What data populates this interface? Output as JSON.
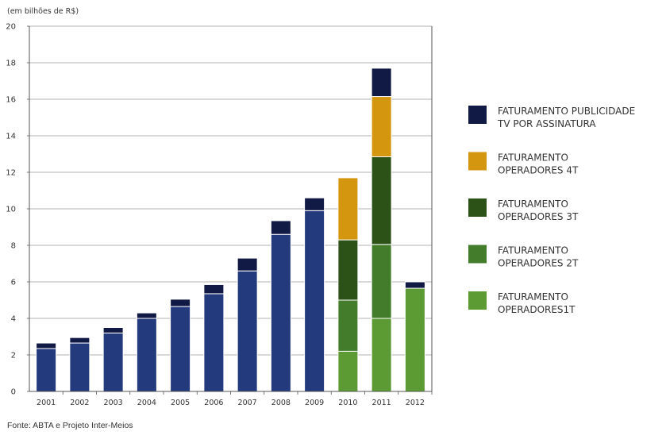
{
  "unit_label": "(em bilhões de R$)",
  "source": "Fonte: ABTA e Projeto Inter-Meios",
  "colors": {
    "publicidade": "#111a45",
    "operadores_4t": "#d4950f",
    "operadores_3t": "#2d5218",
    "operadores_2t": "#437d2b",
    "operadores_1t": "#5c9a33",
    "operadores_pre2010": "#233a7d",
    "grid": "#999999",
    "axis": "#555555"
  },
  "legend": [
    {
      "series": "publicidade",
      "lines": [
        "FATURAMENTO PUBLICIDADE",
        "TV POR ASSINATURA"
      ]
    },
    {
      "series": "operadores_4t",
      "lines": [
        "FATURAMENTO",
        "OPERADORES 4T"
      ]
    },
    {
      "series": "operadores_3t",
      "lines": [
        "FATURAMENTO",
        "OPERADORES 3T"
      ]
    },
    {
      "series": "operadores_2t",
      "lines": [
        "FATURAMENTO",
        "OPERADORES 2T"
      ]
    },
    {
      "series": "operadores_1t",
      "lines": [
        "FATURAMENTO",
        "OPERADORES1T"
      ]
    }
  ],
  "chart_data": {
    "type": "bar",
    "stacked": true,
    "title": "",
    "xlabel": "",
    "ylabel": "(em bilhões de R$)",
    "ylim": [
      0,
      20
    ],
    "yticks": [
      0,
      2,
      4,
      6,
      8,
      10,
      12,
      14,
      16,
      18,
      20
    ],
    "grid": true,
    "legend_position": "right",
    "categories": [
      "2001",
      "2002",
      "2003",
      "2004",
      "2005",
      "2006",
      "2007",
      "2008",
      "2009",
      "2010",
      "2011",
      "2012"
    ],
    "bars": [
      {
        "category": "2001",
        "segments": [
          {
            "series": "operadores_pre2010",
            "value": 2.35
          },
          {
            "series": "publicidade",
            "value": 0.3
          }
        ]
      },
      {
        "category": "2002",
        "segments": [
          {
            "series": "operadores_pre2010",
            "value": 2.65
          },
          {
            "series": "publicidade",
            "value": 0.3
          }
        ]
      },
      {
        "category": "2003",
        "segments": [
          {
            "series": "operadores_pre2010",
            "value": 3.2
          },
          {
            "series": "publicidade",
            "value": 0.3
          }
        ]
      },
      {
        "category": "2004",
        "segments": [
          {
            "series": "operadores_pre2010",
            "value": 4.0
          },
          {
            "series": "publicidade",
            "value": 0.3
          }
        ]
      },
      {
        "category": "2005",
        "segments": [
          {
            "series": "operadores_pre2010",
            "value": 4.65
          },
          {
            "series": "publicidade",
            "value": 0.4
          }
        ]
      },
      {
        "category": "2006",
        "segments": [
          {
            "series": "operadores_pre2010",
            "value": 5.35
          },
          {
            "series": "publicidade",
            "value": 0.5
          }
        ]
      },
      {
        "category": "2007",
        "segments": [
          {
            "series": "operadores_pre2010",
            "value": 6.6
          },
          {
            "series": "publicidade",
            "value": 0.7
          }
        ]
      },
      {
        "category": "2008",
        "segments": [
          {
            "series": "operadores_pre2010",
            "value": 8.6
          },
          {
            "series": "publicidade",
            "value": 0.75
          }
        ]
      },
      {
        "category": "2009",
        "segments": [
          {
            "series": "operadores_pre2010",
            "value": 9.9
          },
          {
            "series": "publicidade",
            "value": 0.7
          }
        ]
      },
      {
        "category": "2010",
        "segments": [
          {
            "series": "operadores_1t",
            "value": 2.2
          },
          {
            "series": "operadores_2t",
            "value": 2.8
          },
          {
            "series": "operadores_3t",
            "value": 3.3
          },
          {
            "series": "operadores_4t",
            "value": 3.4
          }
        ]
      },
      {
        "category": "2011",
        "segments": [
          {
            "series": "operadores_1t",
            "value": 4.0
          },
          {
            "series": "operadores_2t",
            "value": 4.05
          },
          {
            "series": "operadores_3t",
            "value": 4.8
          },
          {
            "series": "operadores_4t",
            "value": 3.3
          },
          {
            "series": "publicidade",
            "value": 1.55
          }
        ]
      },
      {
        "category": "2012",
        "segments": [
          {
            "series": "operadores_1t",
            "value": 5.65
          },
          {
            "series": "publicidade",
            "value": 0.35
          }
        ]
      }
    ]
  }
}
